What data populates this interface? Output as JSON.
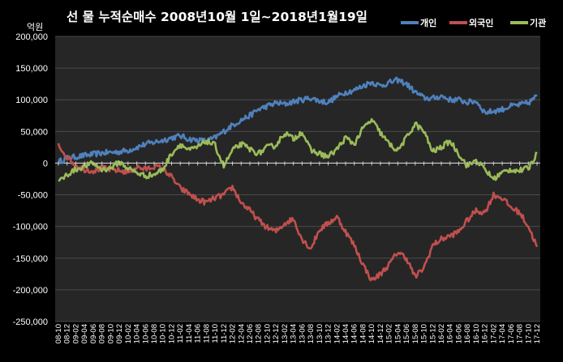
{
  "colors": {
    "background": "#000000",
    "plot_background": "#262626",
    "text": "#ffffff",
    "gridline": "#4a4a4a",
    "zero_line": "#cfcfcf"
  },
  "chart_data": {
    "type": "line",
    "title": "선 물  누적순매수  2008년10월 1일~2018년1월19일",
    "ylabel": "억원",
    "ylim": [
      -250000,
      200000
    ],
    "y_ticks": [
      200000,
      150000,
      100000,
      50000,
      0,
      -50000,
      -100000,
      -150000,
      -200000,
      -250000
    ],
    "y_tick_labels": [
      "200,000",
      "150,000",
      "100,000",
      "50,000",
      "0",
      "-50,000",
      "-100,000",
      "-150,000",
      "-200,000",
      "-250,000"
    ],
    "x_tick_labels": [
      "08-10",
      "08-12",
      "09-02",
      "09-04",
      "09-06",
      "09-08",
      "09-10",
      "09-12",
      "10-02",
      "10-04",
      "10-06",
      "10-08",
      "10-10",
      "10-12",
      "11-02",
      "11-04",
      "11-06",
      "11-08",
      "11-10",
      "11-12",
      "12-02",
      "12-04",
      "12-06",
      "12-08",
      "12-10",
      "12-12",
      "13-02",
      "13-04",
      "13-06",
      "13-08",
      "13-10",
      "13-12",
      "14-02",
      "14-04",
      "14-06",
      "14-08",
      "14-10",
      "14-12",
      "15-02",
      "15-04",
      "15-06",
      "15-08",
      "15-10",
      "15-12",
      "16-02",
      "16-04",
      "16-06",
      "16-08",
      "16-10",
      "16-12",
      "17-02",
      "17-04",
      "17-06",
      "17-08",
      "17-10",
      "17-12"
    ],
    "legend_position": "top-right",
    "grid": true,
    "series": [
      {
        "name": "개인",
        "color": "#4f81bd",
        "values": [
          2000,
          8000,
          10000,
          12000,
          14000,
          16000,
          17000,
          18000,
          20000,
          25000,
          30000,
          33000,
          36000,
          40000,
          43000,
          38000,
          36000,
          35000,
          40000,
          50000,
          60000,
          68000,
          75000,
          85000,
          90000,
          95000,
          93000,
          97000,
          100000,
          103000,
          98000,
          96000,
          105000,
          112000,
          115000,
          122000,
          128000,
          122000,
          127000,
          131000,
          125000,
          112000,
          103000,
          102000,
          106000,
          100000,
          100000,
          96000,
          98000,
          80000,
          82000,
          85000,
          90000,
          92000,
          95000,
          106000
        ]
      },
      {
        "name": "외국인",
        "color": "#c0504d",
        "values": [
          28000,
          10000,
          -4000,
          -10000,
          -12000,
          -8000,
          -10000,
          -12000,
          -14000,
          -6000,
          -10000,
          -5000,
          -8000,
          -22000,
          -40000,
          -48000,
          -58000,
          -62000,
          -55000,
          -50000,
          -38000,
          -62000,
          -75000,
          -90000,
          -102000,
          -108000,
          -95000,
          -88000,
          -120000,
          -135000,
          -105000,
          -95000,
          -85000,
          -108000,
          -130000,
          -160000,
          -185000,
          -175000,
          -160000,
          -140000,
          -150000,
          -180000,
          -165000,
          -130000,
          -120000,
          -115000,
          -108000,
          -90000,
          -75000,
          -78000,
          -50000,
          -55000,
          -70000,
          -78000,
          -100000,
          -132000
        ]
      },
      {
        "name": "기관",
        "color": "#9bbb59",
        "values": [
          -30000,
          -18000,
          -10000,
          -5000,
          0,
          -10000,
          -8000,
          2000,
          -8000,
          -15000,
          -20000,
          -18000,
          -10000,
          15000,
          30000,
          20000,
          25000,
          35000,
          28000,
          -5000,
          20000,
          30000,
          22000,
          15000,
          25000,
          28000,
          48000,
          38000,
          50000,
          20000,
          15000,
          10000,
          22000,
          40000,
          30000,
          55000,
          68000,
          48000,
          30000,
          20000,
          40000,
          62000,
          50000,
          18000,
          25000,
          35000,
          15000,
          -5000,
          5000,
          -10000,
          -25000,
          -15000,
          -10000,
          -12000,
          -8000,
          15000
        ]
      }
    ]
  }
}
